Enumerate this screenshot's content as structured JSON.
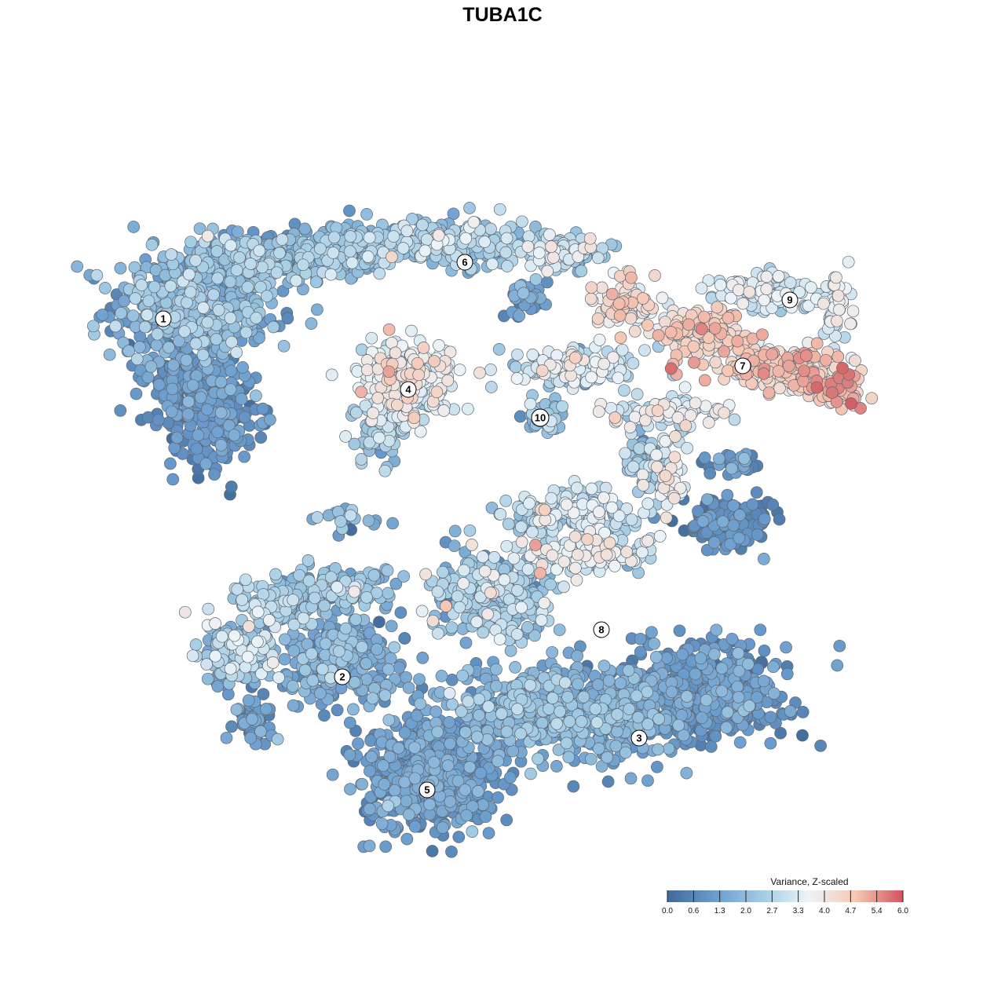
{
  "chart_data": {
    "type": "scatter",
    "title": "TUBA1C",
    "colorbar": {
      "title": "Variance, Z-scaled",
      "ticks": [
        "0.0",
        "0.6",
        "1.3",
        "2.0",
        "2.7",
        "3.3",
        "4.0",
        "4.7",
        "5.4",
        "6.0"
      ],
      "range": [
        0.0,
        6.0
      ],
      "colors": [
        "#3f6a9a",
        "#6a9ccd",
        "#a2cbe3",
        "#edf4f8",
        "#f6c7b4",
        "#d0545c"
      ],
      "placement": "bottom-right"
    },
    "clusters": [
      {
        "label": "1",
        "x": -7.2,
        "y": 3.9
      },
      {
        "label": "2",
        "x": -3.4,
        "y": -3.7
      },
      {
        "label": "3",
        "x": 2.9,
        "y": -5.0
      },
      {
        "label": "4",
        "x": -2.0,
        "y": 2.4
      },
      {
        "label": "5",
        "x": -1.6,
        "y": -6.1
      },
      {
        "label": "6",
        "x": -0.8,
        "y": 5.1
      },
      {
        "label": "7",
        "x": 5.1,
        "y": 2.9
      },
      {
        "label": "8",
        "x": 2.1,
        "y": -2.7
      },
      {
        "label": "9",
        "x": 6.1,
        "y": 4.3
      },
      {
        "label": "10",
        "x": 0.8,
        "y": 1.8
      }
    ],
    "axes_visible": false,
    "grid": false
  }
}
